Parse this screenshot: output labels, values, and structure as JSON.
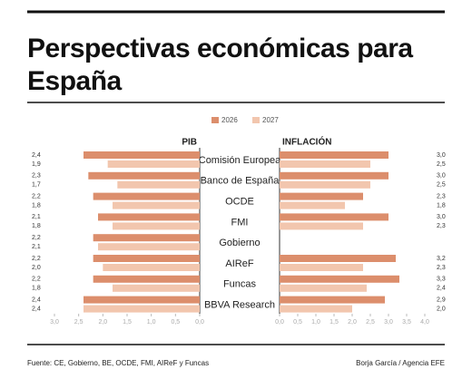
{
  "chart_data": {
    "type": "butterfly-bar",
    "title": "Perspectivas económicas para España",
    "source": "Fuente: CE, Gobierno, BE, OCDE, FMI, AIReF y Funcas",
    "credit": "Borja García / Agencia EFE",
    "categories": [
      "Comisión Europea",
      "Banco de España",
      "OCDE",
      "FMI",
      "Gobierno",
      "AIReF",
      "Funcas",
      "BBVA Research"
    ],
    "series": [
      {
        "name": "2026",
        "color": "#dc8e6c"
      },
      {
        "name": "2027",
        "color": "#f2c6ae"
      }
    ],
    "panels": [
      {
        "title": "PIB",
        "direction": "left",
        "xlim": [
          0,
          3
        ],
        "xticks": [
          {
            "value": 3,
            "label": "3,0"
          },
          {
            "value": 2.5,
            "label": "2,5"
          },
          {
            "value": 2,
            "label": "2,0"
          },
          {
            "value": 1.5,
            "label": "1,5"
          },
          {
            "value": 1,
            "label": "1,0"
          },
          {
            "value": 0.5,
            "label": "0,5"
          },
          {
            "value": 0,
            "label": "0,0"
          }
        ],
        "values": [
          [
            2.4,
            2.3,
            2.2,
            2.1,
            2.2,
            2.2,
            2.2,
            2.4
          ],
          [
            1.9,
            1.7,
            1.8,
            1.8,
            2.1,
            2.0,
            1.8,
            2.4
          ]
        ],
        "value_labels": [
          [
            "2,4",
            "2,3",
            "2,2",
            "2,1",
            "2,2",
            "2,2",
            "2,2",
            "2,4"
          ],
          [
            "1,9",
            "1,7",
            "1,8",
            "1,8",
            "2,1",
            "2,0",
            "1,8",
            "2,4"
          ]
        ]
      },
      {
        "title": "INFLACIÓN",
        "direction": "right",
        "xlim": [
          0,
          4
        ],
        "xticks": [
          {
            "value": 0,
            "label": "0,0"
          },
          {
            "value": 0.5,
            "label": "0,5"
          },
          {
            "value": 1,
            "label": "1,0"
          },
          {
            "value": 1.5,
            "label": "1,5"
          },
          {
            "value": 2,
            "label": "2,0"
          },
          {
            "value": 2.5,
            "label": "2,5"
          },
          {
            "value": 3,
            "label": "3,0"
          },
          {
            "value": 3.5,
            "label": "3,5"
          },
          {
            "value": 4,
            "label": "4,0"
          }
        ],
        "values": [
          [
            3.0,
            3.0,
            2.3,
            3.0,
            null,
            3.2,
            3.3,
            2.9
          ],
          [
            2.5,
            2.5,
            1.8,
            2.3,
            null,
            2.3,
            2.4,
            2.0
          ]
        ],
        "value_labels": [
          [
            "3,0",
            "3,0",
            "2,3",
            "3,0",
            null,
            "3,2",
            "3,3",
            "2,9"
          ],
          [
            "2,5",
            "2,5",
            "1,8",
            "2,3",
            null,
            "2,3",
            "2,4",
            "2,0"
          ]
        ]
      }
    ]
  }
}
